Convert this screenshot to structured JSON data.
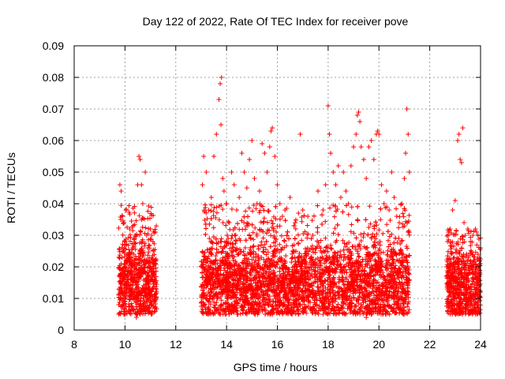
{
  "chart_data": {
    "type": "scatter",
    "title": "Day 122 of 2022, Rate Of TEC Index for receiver pove",
    "xlabel": "GPS time / hours",
    "ylabel": "ROTI / TECUs",
    "xlim": [
      8,
      24
    ],
    "ylim": [
      0,
      0.09
    ],
    "xticks": [
      8,
      10,
      12,
      14,
      16,
      18,
      20,
      22,
      24
    ],
    "yticks": [
      0,
      0.01,
      0.02,
      0.03,
      0.04,
      0.05,
      0.06,
      0.07,
      0.08,
      0.09
    ],
    "xtick_labels": [
      "8",
      "10",
      "12",
      "14",
      "16",
      "18",
      "20",
      "22",
      "24"
    ],
    "ytick_labels": [
      "0",
      "0.01",
      "0.02",
      "0.03",
      "0.04",
      "0.05",
      "0.06",
      "0.07",
      "0.08",
      "0.09"
    ],
    "grid": true,
    "marker": "+",
    "color": "#ff0000",
    "series": [
      {
        "points": [
          [
            9.8,
            0.046
          ],
          [
            9.85,
            0.044
          ],
          [
            9.9,
            0.036
          ],
          [
            9.95,
            0.034
          ],
          [
            10.0,
            0.028
          ],
          [
            10.05,
            0.022
          ],
          [
            10.1,
            0.016
          ],
          [
            10.15,
            0.012
          ],
          [
            10.25,
            0.02
          ],
          [
            10.3,
            0.026
          ],
          [
            10.35,
            0.024
          ],
          [
            10.4,
            0.03
          ],
          [
            10.5,
            0.046
          ],
          [
            10.55,
            0.055
          ],
          [
            10.6,
            0.054
          ],
          [
            10.65,
            0.046
          ],
          [
            10.7,
            0.04
          ],
          [
            10.8,
            0.05
          ],
          [
            10.85,
            0.03
          ],
          [
            10.9,
            0.026
          ],
          [
            11.0,
            0.032
          ],
          [
            11.05,
            0.03
          ],
          [
            11.1,
            0.028
          ],
          [
            11.2,
            0.031
          ],
          [
            9.75,
            0.005
          ],
          [
            10.0,
            0.006
          ],
          [
            10.45,
            0.004
          ],
          [
            10.9,
            0.006
          ],
          [
            13.05,
            0.046
          ],
          [
            13.1,
            0.055
          ],
          [
            13.2,
            0.05
          ],
          [
            13.3,
            0.038
          ],
          [
            13.4,
            0.042
          ],
          [
            13.5,
            0.055
          ],
          [
            13.6,
            0.062
          ],
          [
            13.7,
            0.073
          ],
          [
            13.75,
            0.078
          ],
          [
            13.8,
            0.08
          ],
          [
            13.78,
            0.065
          ],
          [
            13.85,
            0.048
          ],
          [
            13.9,
            0.044
          ],
          [
            14.0,
            0.04
          ],
          [
            14.1,
            0.034
          ],
          [
            14.2,
            0.05
          ],
          [
            14.3,
            0.046
          ],
          [
            14.4,
            0.038
          ],
          [
            14.5,
            0.042
          ],
          [
            14.6,
            0.056
          ],
          [
            14.7,
            0.05
          ],
          [
            14.8,
            0.045
          ],
          [
            14.9,
            0.054
          ],
          [
            15.0,
            0.06
          ],
          [
            15.1,
            0.048
          ],
          [
            15.2,
            0.04
          ],
          [
            15.3,
            0.044
          ],
          [
            15.4,
            0.059
          ],
          [
            15.5,
            0.056
          ],
          [
            15.6,
            0.05
          ],
          [
            15.7,
            0.058
          ],
          [
            15.75,
            0.063
          ],
          [
            15.8,
            0.064
          ],
          [
            15.9,
            0.055
          ],
          [
            16.0,
            0.046
          ],
          [
            16.1,
            0.04
          ],
          [
            16.2,
            0.036
          ],
          [
            16.3,
            0.038
          ],
          [
            16.5,
            0.042
          ],
          [
            16.7,
            0.034
          ],
          [
            16.9,
            0.062
          ],
          [
            17.0,
            0.038
          ],
          [
            17.2,
            0.036
          ],
          [
            17.4,
            0.03
          ],
          [
            17.6,
            0.044
          ],
          [
            17.8,
            0.038
          ],
          [
            17.9,
            0.046
          ],
          [
            18.0,
            0.071
          ],
          [
            18.05,
            0.062
          ],
          [
            18.1,
            0.056
          ],
          [
            18.2,
            0.05
          ],
          [
            18.3,
            0.046
          ],
          [
            18.4,
            0.052
          ],
          [
            18.5,
            0.042
          ],
          [
            18.6,
            0.05
          ],
          [
            18.7,
            0.044
          ],
          [
            18.8,
            0.04
          ],
          [
            18.9,
            0.052
          ],
          [
            19.0,
            0.058
          ],
          [
            19.1,
            0.062
          ],
          [
            19.15,
            0.068
          ],
          [
            19.2,
            0.069
          ],
          [
            19.25,
            0.066
          ],
          [
            19.3,
            0.058
          ],
          [
            19.4,
            0.054
          ],
          [
            19.5,
            0.048
          ],
          [
            19.6,
            0.058
          ],
          [
            19.7,
            0.06
          ],
          [
            19.8,
            0.054
          ],
          [
            19.9,
            0.062
          ],
          [
            19.95,
            0.063
          ],
          [
            20.0,
            0.062
          ],
          [
            20.1,
            0.046
          ],
          [
            20.2,
            0.04
          ],
          [
            20.3,
            0.044
          ],
          [
            20.4,
            0.038
          ],
          [
            20.5,
            0.05
          ],
          [
            20.6,
            0.042
          ],
          [
            20.7,
            0.036
          ],
          [
            20.8,
            0.034
          ],
          [
            20.9,
            0.04
          ],
          [
            21.0,
            0.048
          ],
          [
            21.05,
            0.056
          ],
          [
            21.1,
            0.07
          ],
          [
            21.15,
            0.062
          ],
          [
            21.2,
            0.05
          ],
          [
            13.1,
            0.008
          ],
          [
            13.6,
            0.006
          ],
          [
            14.4,
            0.007
          ],
          [
            15.1,
            0.008
          ],
          [
            15.8,
            0.006
          ],
          [
            16.4,
            0.007
          ],
          [
            17.1,
            0.006
          ],
          [
            17.8,
            0.005
          ],
          [
            18.4,
            0.007
          ],
          [
            19.0,
            0.006
          ],
          [
            19.5,
            0.004
          ],
          [
            19.7,
            0.005
          ],
          [
            20.3,
            0.006
          ],
          [
            20.9,
            0.007
          ],
          [
            22.7,
            0.028
          ],
          [
            22.8,
            0.032
          ],
          [
            22.9,
            0.038
          ],
          [
            23.0,
            0.041
          ],
          [
            23.1,
            0.06
          ],
          [
            23.15,
            0.062
          ],
          [
            23.2,
            0.054
          ],
          [
            23.25,
            0.053
          ],
          [
            23.3,
            0.064
          ],
          [
            23.35,
            0.034
          ],
          [
            23.4,
            0.03
          ],
          [
            23.5,
            0.032
          ],
          [
            23.6,
            0.028
          ],
          [
            23.7,
            0.03
          ],
          [
            23.8,
            0.032
          ],
          [
            23.9,
            0.03
          ],
          [
            24.0,
            0.026
          ],
          [
            22.75,
            0.008
          ],
          [
            23.4,
            0.006
          ],
          [
            23.9,
            0.007
          ]
        ]
      }
    ],
    "dense_bands": [
      {
        "x_start": 9.75,
        "x_end": 11.25,
        "y_min": 0.005,
        "y_max": 0.04,
        "y_peak": 0.016
      },
      {
        "x_start": 13.0,
        "x_end": 21.2,
        "y_min": 0.005,
        "y_max": 0.04,
        "y_peak": 0.015
      },
      {
        "x_start": 22.65,
        "x_end": 24.0,
        "y_min": 0.005,
        "y_max": 0.032,
        "y_peak": 0.014
      }
    ]
  }
}
